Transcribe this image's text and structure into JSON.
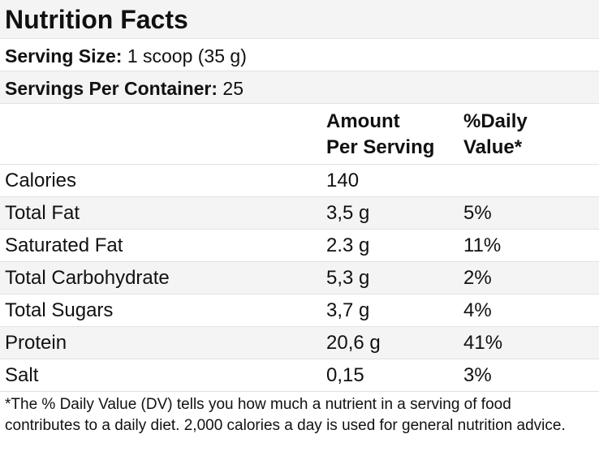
{
  "title": "Nutrition Facts",
  "serving_size": {
    "label": "Serving Size:",
    "value": " 1 scoop (35 g)"
  },
  "servings_per_container": {
    "label": "Servings Per Container:",
    "value": " 25"
  },
  "columns": {
    "amount_line1": "Amount",
    "amount_line2": "Per Serving",
    "dv_line1": "%Daily",
    "dv_line2": "Value*"
  },
  "nutrients": [
    {
      "name": "Calories",
      "amount": "140",
      "dv": ""
    },
    {
      "name": "Total Fat",
      "amount": "3,5 g",
      "dv": "5%"
    },
    {
      "name": "Saturated Fat",
      "amount": "2.3 g",
      "dv": "11%"
    },
    {
      "name": "Total Carbohydrate",
      "amount": "5,3 g",
      "dv": "2%"
    },
    {
      "name": "Total Sugars",
      "amount": "3,7 g",
      "dv": "4%"
    },
    {
      "name": "Protein",
      "amount": "20,6 g",
      "dv": "41%"
    },
    {
      "name": "Salt",
      "amount": "0,15",
      "dv": "3%"
    }
  ],
  "footnote": "*The % Daily Value (DV) tells you how much a nutrient in a serving of food contributes to a daily diet. 2,000 calories a day is used for general nutrition advice."
}
